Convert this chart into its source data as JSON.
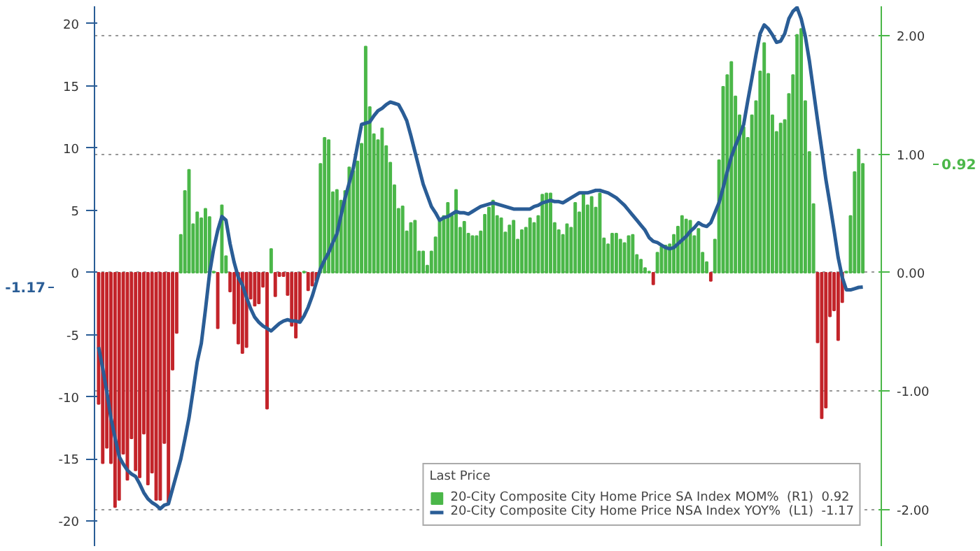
{
  "chart_data": {
    "type": "bar",
    "legend_title": "Last Price",
    "legend": "bottom right",
    "grid": "y",
    "tick_labels": "y",
    "annotations": [
      "0.92",
      "-1.17"
    ],
    "categories": [
      null,
      null,
      null,
      null,
      null,
      null,
      null,
      null,
      null,
      null,
      null,
      null,
      null,
      null,
      null,
      null,
      null,
      null,
      null,
      null,
      null,
      null,
      null,
      null,
      null,
      null,
      null,
      null,
      null,
      null,
      null,
      null,
      null,
      null,
      null,
      null,
      null,
      null,
      null,
      null,
      null,
      null,
      null,
      null,
      null,
      null,
      null,
      null,
      null,
      null,
      null,
      null,
      null,
      null,
      null,
      null,
      null,
      null,
      null,
      null,
      null,
      null,
      null,
      null,
      null,
      null,
      null,
      null,
      null,
      null,
      null,
      null,
      null,
      null,
      null,
      null,
      null,
      null,
      null,
      null,
      null,
      null,
      null,
      null,
      null,
      null,
      null,
      null,
      null,
      null,
      null,
      null,
      null,
      null,
      null,
      null,
      null,
      null,
      null,
      null,
      null,
      null,
      null,
      null,
      null,
      null,
      null,
      null,
      null,
      null,
      null,
      null,
      null,
      null,
      null,
      null,
      null,
      null,
      null,
      null,
      null,
      null,
      null,
      null,
      null,
      null,
      null,
      null,
      null,
      null,
      null,
      null,
      null,
      null,
      null,
      null,
      null,
      null,
      null,
      null,
      null,
      null,
      null,
      null,
      null,
      null,
      null,
      null,
      null,
      null,
      null,
      null,
      null,
      null,
      null,
      null,
      null,
      null,
      null,
      null,
      null,
      null,
      null,
      null,
      null,
      null,
      null,
      null,
      null,
      null,
      null,
      null,
      null,
      null,
      null,
      null,
      null,
      null,
      null,
      null,
      null,
      null,
      null,
      null,
      null,
      null,
      null
    ],
    "ylim": [
      -22,
      21.4
    ],
    "yticks": [
      -20,
      -15,
      -10,
      -5,
      0,
      5,
      10,
      15,
      20
    ],
    "y2lim": [
      -2.31,
      2.25
    ],
    "y2ticks": [
      {
        "value": -2,
        "label": "-2.00"
      },
      {
        "value": -1,
        "label": "-1.00"
      },
      {
        "value": 0,
        "label": "0.00"
      },
      {
        "value": 1,
        "label": "1.00"
      },
      {
        "value": 2,
        "label": "2.00"
      }
    ],
    "series": [
      {
        "axis": "y2",
        "name": "20-City Composite City Home Price SA Index MOM%  (R1)  0.92",
        "color": "#4bb749",
        "values": [
          -1.11,
          -1.61,
          -1.48,
          -1.61,
          -1.98,
          -1.92,
          -1.53,
          -1.75,
          -1.4,
          -1.67,
          -1.73,
          -1.36,
          -1.79,
          -1.69,
          -1.92,
          -1.92,
          -1.44,
          -1.94,
          -0.82,
          -0.51,
          0.32,
          0.69,
          0.87,
          0.41,
          0.51,
          0.46,
          0.54,
          0.47,
          0.01,
          -0.47,
          0.57,
          0.14,
          -0.16,
          -0.43,
          -0.6,
          -0.68,
          -0.63,
          -0.22,
          -0.28,
          -0.26,
          -0.12,
          -1.15,
          0.2,
          -0.2,
          -0.03,
          -0.03,
          -0.19,
          -0.45,
          -0.55,
          -0.41,
          0.01,
          -0.15,
          -0.11,
          -0.07,
          0.92,
          1.14,
          1.12,
          0.68,
          0.7,
          0.61,
          0.69,
          0.89,
          0.86,
          0.94,
          1.09,
          1.91,
          1.4,
          1.17,
          1.12,
          1.22,
          1.07,
          0.93,
          0.74,
          0.54,
          0.56,
          0.35,
          0.42,
          0.44,
          0.18,
          0.18,
          0.06,
          0.18,
          0.3,
          0.44,
          0.48,
          0.59,
          0.48,
          0.7,
          0.38,
          0.43,
          0.33,
          0.31,
          0.31,
          0.35,
          0.49,
          0.55,
          0.61,
          0.48,
          0.46,
          0.34,
          0.4,
          0.44,
          0.28,
          0.36,
          0.38,
          0.46,
          0.42,
          0.48,
          0.66,
          0.67,
          0.67,
          0.42,
          0.36,
          0.32,
          0.41,
          0.38,
          0.59,
          0.51,
          0.67,
          0.57,
          0.64,
          0.55,
          0.67,
          0.29,
          0.24,
          0.33,
          0.33,
          0.28,
          0.25,
          0.31,
          0.32,
          0.15,
          0.11,
          0.04,
          0.01,
          -0.1,
          0.17,
          0.22,
          0.23,
          0.24,
          0.32,
          0.39,
          0.48,
          0.45,
          0.44,
          0.31,
          0.37,
          0.17,
          0.09,
          -0.07,
          0.28,
          0.95,
          1.57,
          1.67,
          1.78,
          1.49,
          1.33,
          1.23,
          1.14,
          1.33,
          1.45,
          1.7,
          1.94,
          1.68,
          1.33,
          1.19,
          1.26,
          1.29,
          1.51,
          1.67,
          2.01,
          2.06,
          1.45,
          1.02,
          0.58,
          -0.59,
          -1.23,
          -1.14,
          -0.37,
          -0.32,
          -0.57,
          -0.25,
          0.01,
          0.48,
          0.85,
          1.04,
          0.92
        ],
        "colors": [
          "#c3242a",
          "#c3242a",
          "#c3242a",
          "#c3242a",
          "#c3242a",
          "#c3242a",
          "#c3242a",
          "#c3242a",
          "#c3242a",
          "#c3242a",
          "#c3242a",
          "#c3242a",
          "#c3242a",
          "#c3242a",
          "#c3242a",
          "#c3242a",
          "#c3242a",
          "#c3242a",
          "#c3242a",
          "#c3242a",
          "#4bb749",
          "#4bb749",
          "#4bb749",
          "#4bb749",
          "#4bb749",
          "#4bb749",
          "#4bb749",
          "#4bb749",
          "#4bb749",
          "#c3242a",
          "#4bb749",
          "#4bb749",
          "#c3242a",
          "#c3242a",
          "#c3242a",
          "#c3242a",
          "#c3242a",
          "#c3242a",
          "#c3242a",
          "#c3242a",
          "#c3242a",
          "#c3242a",
          "#4bb749",
          "#c3242a",
          "#c3242a",
          "#c3242a",
          "#c3242a",
          "#c3242a",
          "#c3242a",
          "#c3242a",
          "#4bb749",
          "#c3242a",
          "#c3242a",
          "#c3242a",
          "#4bb749",
          "#4bb749",
          "#4bb749",
          "#4bb749",
          "#4bb749",
          "#4bb749",
          "#4bb749",
          "#4bb749",
          "#4bb749",
          "#4bb749",
          "#4bb749",
          "#4bb749",
          "#4bb749",
          "#4bb749",
          "#4bb749",
          "#4bb749",
          "#4bb749",
          "#4bb749",
          "#4bb749",
          "#4bb749",
          "#4bb749",
          "#4bb749",
          "#4bb749",
          "#4bb749",
          "#4bb749",
          "#4bb749",
          "#4bb749",
          "#4bb749",
          "#4bb749",
          "#4bb749",
          "#4bb749",
          "#4bb749",
          "#4bb749",
          "#4bb749",
          "#4bb749",
          "#4bb749",
          "#4bb749",
          "#4bb749",
          "#4bb749",
          "#4bb749",
          "#4bb749",
          "#4bb749",
          "#4bb749",
          "#4bb749",
          "#4bb749",
          "#4bb749",
          "#4bb749",
          "#4bb749",
          "#4bb749",
          "#4bb749",
          "#4bb749",
          "#4bb749",
          "#4bb749",
          "#4bb749",
          "#4bb749",
          "#4bb749",
          "#4bb749",
          "#4bb749",
          "#4bb749",
          "#4bb749",
          "#4bb749",
          "#4bb749",
          "#4bb749",
          "#4bb749",
          "#4bb749",
          "#4bb749",
          "#4bb749",
          "#4bb749",
          "#4bb749",
          "#4bb749",
          "#4bb749",
          "#4bb749",
          "#4bb749",
          "#4bb749",
          "#4bb749",
          "#4bb749",
          "#4bb749",
          "#4bb749",
          "#4bb749",
          "#4bb749",
          "#4bb749",
          "#c3242a",
          "#4bb749",
          "#4bb749",
          "#4bb749",
          "#4bb749",
          "#4bb749",
          "#4bb749",
          "#4bb749",
          "#4bb749",
          "#4bb749",
          "#4bb749",
          "#4bb749",
          "#4bb749",
          "#4bb749",
          "#c3242a",
          "#4bb749",
          "#4bb749",
          "#4bb749",
          "#4bb749",
          "#4bb749",
          "#4bb749",
          "#4bb749",
          "#4bb749",
          "#4bb749",
          "#4bb749",
          "#4bb749",
          "#4bb749",
          "#4bb749",
          "#4bb749",
          "#4bb749",
          "#4bb749",
          "#4bb749",
          "#4bb749",
          "#4bb749",
          "#4bb749",
          "#4bb749",
          "#4bb749",
          "#4bb749",
          "#4bb749",
          "#4bb749",
          "#c3242a",
          "#c3242a",
          "#c3242a",
          "#c3242a",
          "#c3242a",
          "#c3242a",
          "#c3242a",
          "#4bb749",
          "#4bb749",
          "#4bb749",
          "#4bb749",
          "#4bb749"
        ]
      },
      {
        "type": "line",
        "name": "20-City Composite City Home Price NSA Index YOY%  (L1)  -1.17",
        "color": "#2a5d96",
        "values": [
          -6.0,
          -7.7,
          -9.6,
          -11.7,
          -13.3,
          -14.8,
          -15.4,
          -15.9,
          -16.2,
          -16.4,
          -17.0,
          -17.7,
          -18.2,
          -18.5,
          -18.7,
          -19.0,
          -18.7,
          -18.6,
          -17.4,
          -16.2,
          -15.0,
          -13.4,
          -11.7,
          -9.5,
          -7.2,
          -5.7,
          -3.0,
          -0.1,
          1.9,
          3.4,
          4.5,
          4.2,
          2.3,
          0.8,
          -0.4,
          -1.0,
          -2.0,
          -2.9,
          -3.6,
          -4.0,
          -4.3,
          -4.5,
          -4.7,
          -4.4,
          -4.1,
          -3.9,
          -3.8,
          -3.9,
          -3.9,
          -4.0,
          -3.5,
          -2.8,
          -1.9,
          -0.8,
          0.3,
          1.0,
          1.6,
          2.4,
          3.1,
          4.6,
          6.0,
          7.2,
          8.4,
          10.2,
          11.9,
          12.0,
          12.1,
          12.6,
          13.0,
          13.2,
          13.5,
          13.7,
          13.6,
          13.5,
          12.9,
          12.2,
          11.0,
          9.7,
          8.4,
          7.1,
          6.2,
          5.3,
          4.8,
          4.2,
          4.4,
          4.5,
          4.7,
          4.9,
          4.8,
          4.8,
          4.7,
          4.9,
          5.1,
          5.3,
          5.4,
          5.5,
          5.6,
          5.5,
          5.4,
          5.3,
          5.2,
          5.1,
          5.1,
          5.1,
          5.1,
          5.1,
          5.3,
          5.4,
          5.6,
          5.7,
          5.8,
          5.7,
          5.7,
          5.6,
          5.8,
          6.0,
          6.2,
          6.4,
          6.4,
          6.4,
          6.5,
          6.6,
          6.6,
          6.5,
          6.4,
          6.2,
          6.0,
          5.7,
          5.4,
          5.0,
          4.6,
          4.2,
          3.8,
          3.4,
          2.8,
          2.5,
          2.4,
          2.2,
          2.0,
          1.9,
          2.0,
          2.3,
          2.6,
          2.9,
          3.3,
          3.6,
          4.0,
          3.8,
          3.7,
          4.0,
          4.8,
          5.6,
          6.8,
          8.1,
          9.3,
          10.2,
          11.0,
          11.9,
          13.8,
          15.6,
          17.5,
          19.2,
          19.9,
          19.6,
          19.1,
          18.5,
          18.6,
          19.2,
          20.4,
          21.0,
          21.3,
          20.4,
          19.0,
          17.0,
          14.6,
          12.2,
          9.9,
          7.5,
          5.5,
          3.4,
          1.2,
          -0.4,
          -1.4,
          -1.4,
          -1.3,
          -1.2,
          -1.17
        ]
      }
    ]
  }
}
